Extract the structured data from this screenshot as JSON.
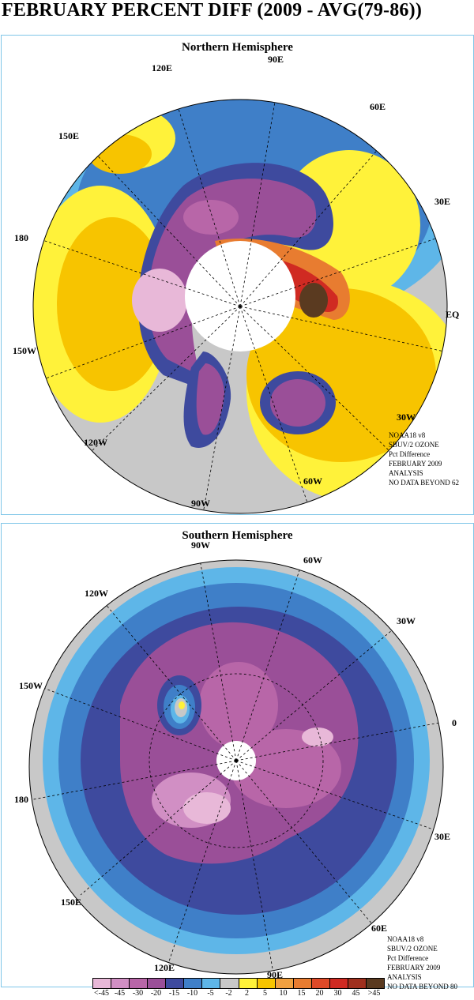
{
  "title": "FEBRUARY PERCENT DIFF (2009 - AVG(79-86))",
  "colors": {
    "lt45": "#e8b8d8",
    "m45": "#d18fc4",
    "m30": "#b866a8",
    "m20": "#9a4f98",
    "m15": "#3e4a9e",
    "m10": "#3f7fc8",
    "m5": "#5eb6e8",
    "m2": "#c8c8c8",
    "p2": "#fff23a",
    "p5": "#f7c400",
    "p10": "#f0a040",
    "p15": "#e87c30",
    "p20": "#e04a28",
    "p30": "#d02a22",
    "p45": "#a0301e",
    "gt45": "#5a3a20",
    "map_border": "#7fc6e8",
    "coast": "#000000"
  },
  "north": {
    "panel_title": "Northern Hemisphere",
    "lon_labels": [
      "90E",
      "60E",
      "30E",
      "EQ",
      "30W",
      "60W",
      "90W",
      "120W",
      "150W",
      "180",
      "150E",
      "120E"
    ],
    "info": [
      "NOAA18 v8",
      "SBUV/2 OZONE",
      "Pct Difference",
      "FEBRUARY 2009",
      "ANALYSIS",
      "NO DATA BEYOND  62"
    ]
  },
  "south": {
    "panel_title": "Southern Hemisphere",
    "lon_labels": [
      "90W",
      "60W",
      "30W",
      "0",
      "30E",
      "60E",
      "90E",
      "120E",
      "150E",
      "180",
      "150W",
      "120W"
    ],
    "info": [
      "NOAA18 v8",
      "SBUV/2 OZONE",
      "Pct Difference",
      "FEBRUARY 2009",
      "ANALYSIS",
      "NO DATA BEYOND  80"
    ]
  },
  "legend": {
    "labels": [
      "<-45",
      "-45",
      "-30",
      "-20",
      "-15",
      "-10",
      "-5",
      "-2",
      "2",
      "5",
      "10",
      "15",
      "20",
      "30",
      "45",
      ">45"
    ],
    "swatch_colors": [
      "#e8b8d8",
      "#d18fc4",
      "#b866a8",
      "#9a4f98",
      "#3e4a9e",
      "#3f7fc8",
      "#5eb6e8",
      "#c8c8c8",
      "#fff23a",
      "#f7c400",
      "#f0a040",
      "#e87c30",
      "#e04a28",
      "#d02a22",
      "#a0301e",
      "#5a3a20"
    ]
  }
}
